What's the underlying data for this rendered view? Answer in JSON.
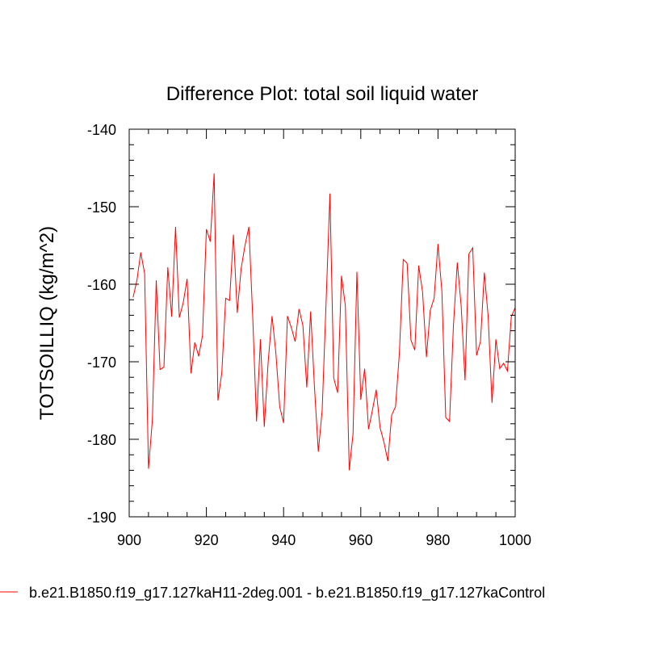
{
  "chart_data": {
    "type": "line",
    "title": "Difference Plot: total soil liquid water",
    "xlabel": "",
    "ylabel": "TOTSOILLIQ  (kg/m^2)",
    "xlim": [
      900,
      1000
    ],
    "ylim": [
      -190,
      -140
    ],
    "x_ticks": [
      900,
      920,
      940,
      960,
      980,
      1000
    ],
    "y_ticks": [
      -140,
      -150,
      -160,
      -170,
      -180,
      -190
    ],
    "x_tick_labels": [
      "900",
      "920",
      "940",
      "960",
      "980",
      "1000"
    ],
    "y_tick_labels": [
      "-140",
      "-150",
      "-160",
      "-170",
      "-180",
      "-190"
    ],
    "grid": false,
    "series": [
      {
        "name": "b.e21.B1850.f19_g17.127kaH11-2deg.001 - b.e21.B1850.f19_g17.127kaControl",
        "color": "#ff0000",
        "x": [
          901,
          902,
          903,
          904,
          905,
          906,
          907,
          908,
          909,
          910,
          911,
          912,
          913,
          914,
          915,
          916,
          917,
          918,
          919,
          920,
          921,
          922,
          923,
          924,
          925,
          926,
          927,
          928,
          929,
          930,
          931,
          932,
          933,
          934,
          935,
          936,
          937,
          938,
          939,
          940,
          941,
          942,
          943,
          944,
          945,
          946,
          947,
          948,
          949,
          950,
          951,
          952,
          953,
          954,
          955,
          956,
          957,
          958,
          959,
          960,
          961,
          962,
          963,
          964,
          965,
          966,
          967,
          968,
          969,
          970,
          971,
          972,
          973,
          974,
          975,
          976,
          977,
          978,
          979,
          980,
          981,
          982,
          983,
          984,
          985,
          986,
          987,
          988,
          989,
          990,
          991,
          992,
          993,
          994,
          995,
          996,
          997,
          998,
          999,
          1000
        ],
        "values": [
          -161.7,
          -159.5,
          -155.9,
          -158.6,
          -183.8,
          -177.5,
          -159.5,
          -171.0,
          -170.7,
          -157.8,
          -164.2,
          -152.6,
          -164.3,
          -162.4,
          -159.3,
          -171.5,
          -167.5,
          -169.3,
          -166.6,
          -152.9,
          -154.5,
          -145.7,
          -175.0,
          -171.4,
          -161.8,
          -162.1,
          -153.6,
          -163.7,
          -158.0,
          -155.0,
          -152.6,
          -164.3,
          -177.7,
          -167.1,
          -178.4,
          -170.0,
          -164.1,
          -168.8,
          -175.8,
          -177.9,
          -164.1,
          -165.6,
          -167.4,
          -163.2,
          -165.3,
          -173.3,
          -163.5,
          -173.2,
          -181.6,
          -176.2,
          -162.4,
          -148.3,
          -172.1,
          -174.0,
          -158.9,
          -162.8,
          -184.0,
          -179.3,
          -158.4,
          -174.9,
          -170.9,
          -178.7,
          -176.3,
          -173.6,
          -178.5,
          -180.4,
          -182.8,
          -176.9,
          -175.8,
          -168.9,
          -156.8,
          -157.3,
          -167.2,
          -168.5,
          -157.6,
          -161.0,
          -169.4,
          -163.4,
          -161.8,
          -154.8,
          -160.9,
          -177.2,
          -177.7,
          -165.4,
          -157.2,
          -162.8,
          -172.4,
          -156.1,
          -155.3,
          -169.2,
          -167.4,
          -158.5,
          -164.1,
          -175.3,
          -167.1,
          -170.9,
          -170.2,
          -171.2,
          -164.2,
          -163.0
        ]
      }
    ]
  }
}
